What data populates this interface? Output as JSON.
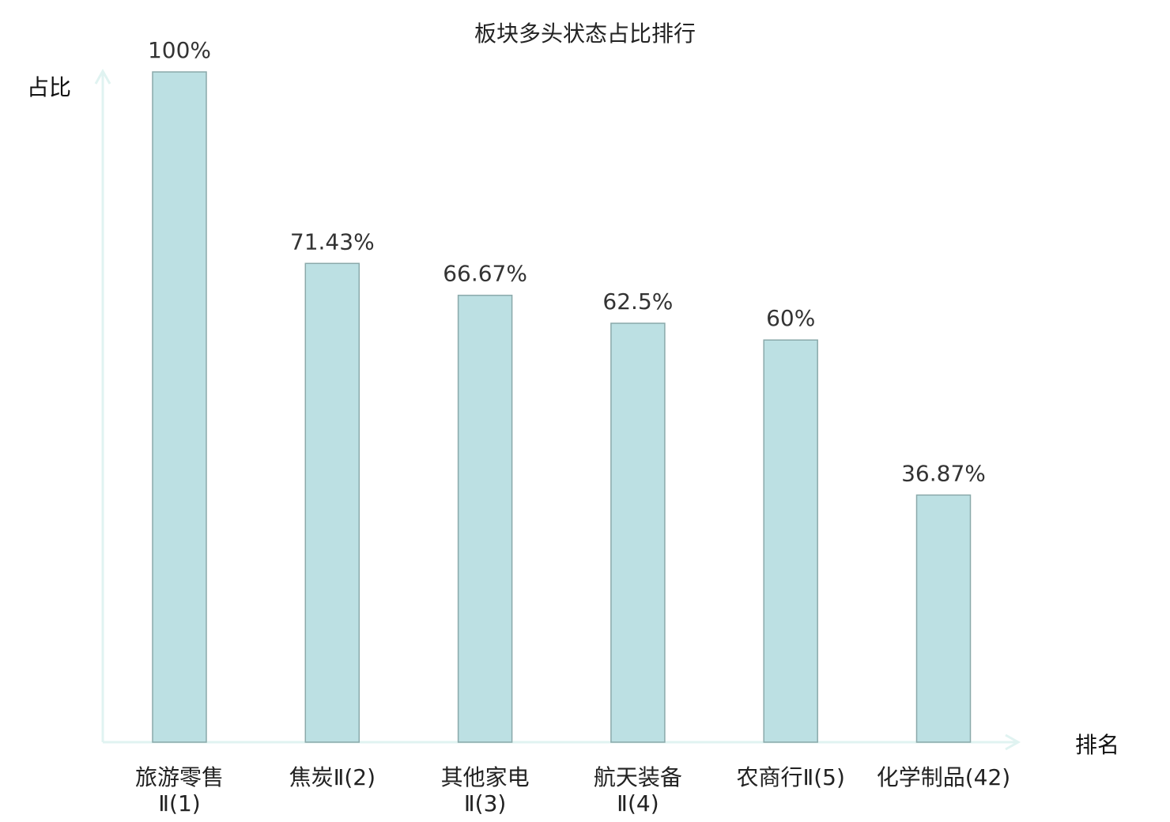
{
  "chart_data": {
    "type": "bar",
    "title": "板块多头状态占比排行",
    "xlabel": "排名",
    "ylabel": "占比",
    "categories": [
      "旅游零售Ⅱ(1)",
      "焦炭Ⅱ(2)",
      "其他家电Ⅱ(3)",
      "航天装备Ⅱ(4)",
      "农商行Ⅱ(5)",
      "化学制品(42)"
    ],
    "values": [
      100,
      71.43,
      66.67,
      62.5,
      60,
      36.87
    ],
    "value_labels": [
      "100%",
      "71.43%",
      "66.67%",
      "62.5%",
      "60%",
      "36.87%"
    ],
    "highlight_index": 5,
    "ylim": [
      0,
      100
    ],
    "grid": false,
    "colors": {
      "bar_fill": "#bce0e3",
      "bar_stroke": "#8aa9aa",
      "axis": "#e0f3f1",
      "highlight_label": "#e81515",
      "label": "#222222"
    }
  }
}
